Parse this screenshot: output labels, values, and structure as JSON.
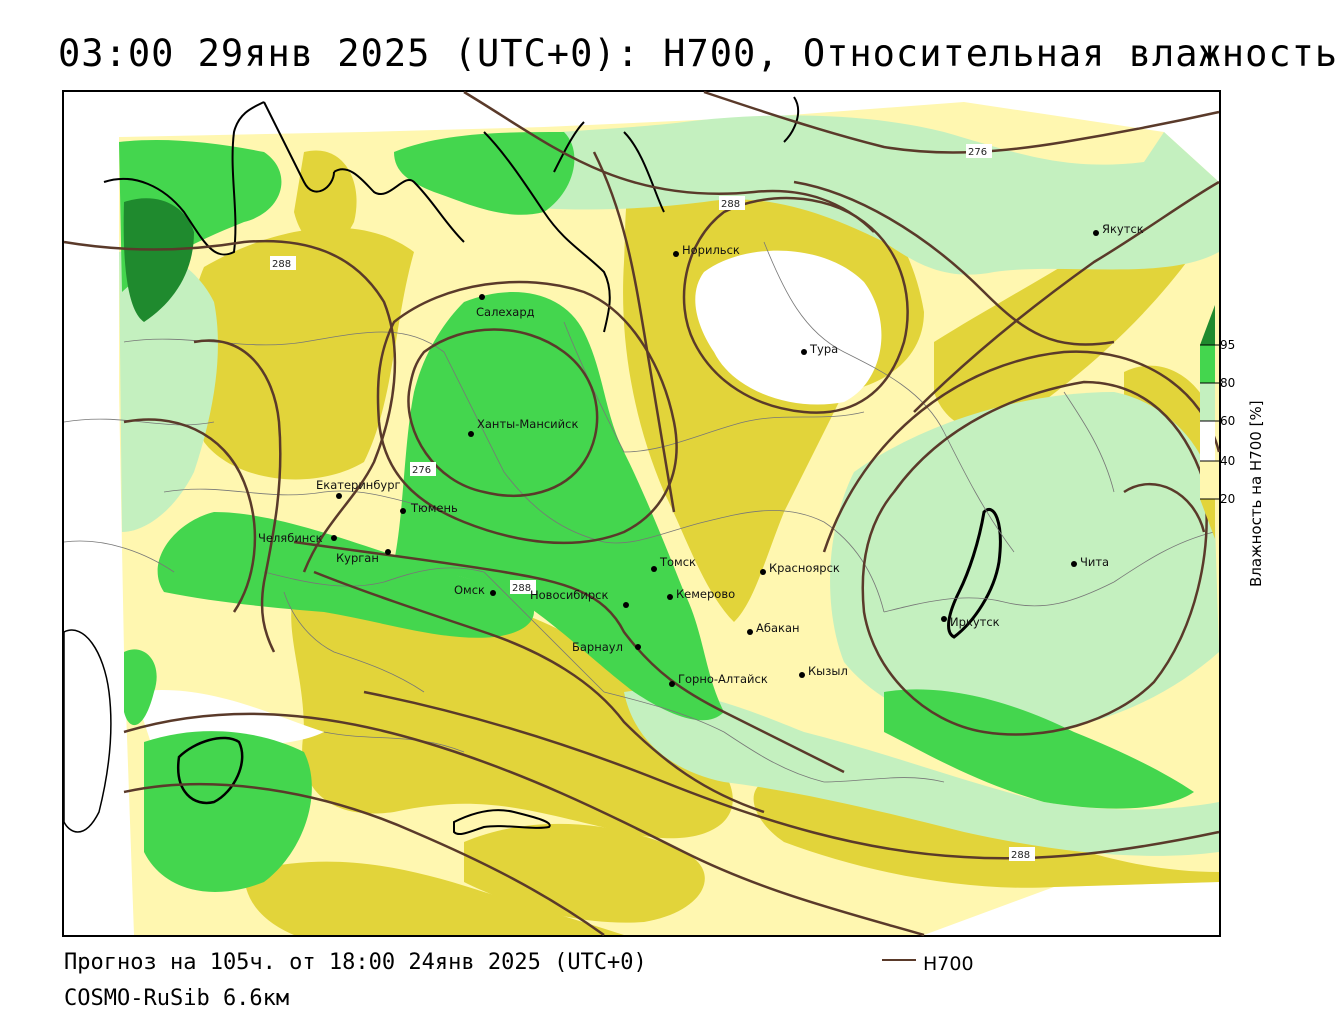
{
  "title": "03:00 29янв 2025 (UTC+0): H700, Относительная влажность",
  "footer": {
    "forecast": "Прогноз на 105ч. от 18:00 24янв 2025 (UTC+0)",
    "model": "COSMO-RuSib 6.6км",
    "legend_line_label": "H700"
  },
  "colorbar": {
    "title": "Влажность на H700 [%]",
    "ticks": [
      "95",
      "80",
      "60",
      "40",
      "20"
    ],
    "colors": {
      "dark_green": "#1f8a2e",
      "green": "#44d64e",
      "light_green": "#c4f0bf",
      "white": "#ffffff",
      "light_yellow": "#fff7b0",
      "yellow": "#e2d43a",
      "brown_line": "#5a3a2a"
    }
  },
  "cities": [
    {
      "id": "salekhard",
      "name": "Салехард"
    },
    {
      "id": "khanty",
      "name": "Ханты-Мансийск"
    },
    {
      "id": "ekb",
      "name": "Екатеринбург"
    },
    {
      "id": "tyumen",
      "name": "Тюмень"
    },
    {
      "id": "chelyabinsk",
      "name": "Челябинск"
    },
    {
      "id": "kurgan",
      "name": "Курган"
    },
    {
      "id": "omsk",
      "name": "Омск"
    },
    {
      "id": "novosibirsk",
      "name": "Новосибирск"
    },
    {
      "id": "barnaul",
      "name": "Барнаул"
    },
    {
      "id": "gorno",
      "name": "Горно-Алтайск"
    },
    {
      "id": "tomsk",
      "name": "Томск"
    },
    {
      "id": "kemerovo",
      "name": "Кемерово"
    },
    {
      "id": "krasnoyarsk",
      "name": "Красноярск"
    },
    {
      "id": "abakan",
      "name": "Абакан"
    },
    {
      "id": "kyzyl",
      "name": "Кызыл"
    },
    {
      "id": "irkutsk",
      "name": "Иркутск"
    },
    {
      "id": "chita",
      "name": "Чита"
    },
    {
      "id": "norilsk",
      "name": "Норильск"
    },
    {
      "id": "tura",
      "name": "Тура"
    },
    {
      "id": "yakutsk",
      "name": "Якутск"
    }
  ],
  "isolines": [
    {
      "id": "iso-276-ne",
      "label": "276"
    },
    {
      "id": "iso-288-n",
      "label": "288"
    },
    {
      "id": "iso-288-w",
      "label": "288"
    },
    {
      "id": "iso-276-khanty",
      "label": "276"
    },
    {
      "id": "iso-288-omsk",
      "label": "288"
    },
    {
      "id": "iso-288-se",
      "label": "288"
    }
  ]
}
